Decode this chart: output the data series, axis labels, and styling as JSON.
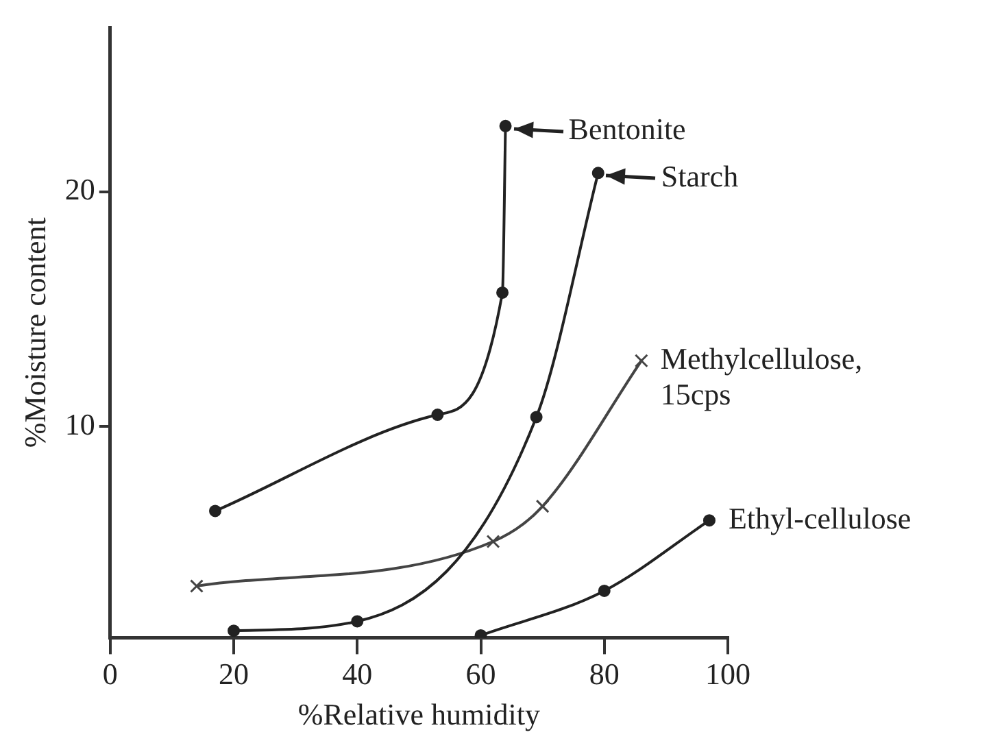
{
  "chart_data": {
    "type": "line",
    "xlabel": "%Relative humidity",
    "ylabel": "%Moisture content",
    "xlim": [
      0,
      100
    ],
    "xticks": [
      0,
      20,
      40,
      60,
      80,
      100
    ],
    "ylim": [
      1,
      27
    ],
    "yticks": [
      10,
      20
    ],
    "grid": false,
    "legend": false,
    "series": [
      {
        "color": "#222222",
        "marker": "circle",
        "x": [
          17,
          53,
          63.5,
          64
        ],
        "values": [
          6.4,
          10.5,
          15.7,
          22.8
        ]
      },
      {
        "color": "#222222",
        "marker": "circle",
        "x": [
          20,
          40,
          69,
          79
        ],
        "values": [
          1.3,
          1.7,
          10.4,
          20.8
        ]
      },
      {
        "name": "Methylcellulose, 15cps",
        "color": "#444444",
        "marker": "cross",
        "x": [
          14,
          62,
          70,
          86
        ],
        "values": [
          3.2,
          5.1,
          6.6,
          12.8
        ]
      },
      {
        "name": "Ethyl-cellulose",
        "color": "#222222",
        "marker": "circle",
        "x": [
          60,
          80,
          97
        ],
        "values": [
          1.1,
          3.0,
          6.0
        ]
      }
    ],
    "annotations": [
      {
        "text": "Bentonite",
        "x": 64,
        "y": 22.8
      },
      {
        "text": "Starch",
        "x": 79,
        "y": 20.8
      }
    ]
  }
}
